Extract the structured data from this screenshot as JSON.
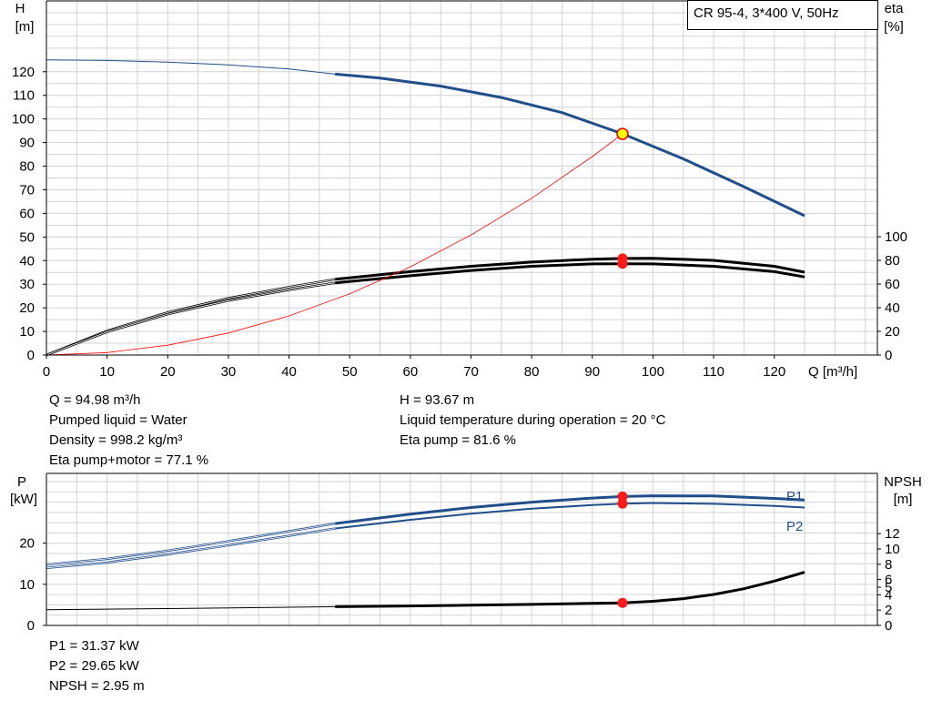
{
  "top_chart": {
    "pump_label": "CR 95-4, 3*400 V, 50Hz",
    "y_left_label": [
      "H",
      "[m]"
    ],
    "y_right_label": [
      "eta",
      "[%]"
    ],
    "x_label": "Q [m³/h]"
  },
  "top_info": {
    "left": [
      "Q = 94.98 m³/h",
      "Pumped liquid = Water",
      "Density = 998.2 kg/m³",
      "Eta pump+motor = 77.1 %"
    ],
    "right": [
      "H = 93.67 m",
      "Liquid temperature during operation = 20 °C",
      "Eta pump = 81.6 %"
    ]
  },
  "bottom_chart": {
    "y_left_label": [
      "P",
      "[kW]"
    ],
    "y_right_label": [
      "NPSH",
      "[m]"
    ],
    "series_labels": [
      "P1",
      "P2"
    ]
  },
  "bottom_info": [
    "P1 = 31.37 kW",
    "P2 = 29.65 kW",
    "NPSH = 2.95 m"
  ],
  "chart_data": [
    {
      "type": "line",
      "x": {
        "label": "Q [m³/h]",
        "range": [
          0,
          137
        ],
        "ticks": [
          0,
          10,
          20,
          30,
          40,
          50,
          60,
          70,
          80,
          90,
          100,
          110,
          120
        ]
      },
      "y_left": {
        "label": "H [m]",
        "range": [
          0,
          150
        ],
        "ticks": [
          0,
          10,
          20,
          30,
          40,
          50,
          60,
          70,
          80,
          90,
          100,
          110,
          120
        ]
      },
      "y_right": {
        "label": "eta [%]",
        "ticks": [
          0,
          20,
          40,
          60,
          80,
          100
        ]
      },
      "grid": true,
      "series": [
        {
          "name": "H",
          "axis": "left",
          "color": "#1f4e8a",
          "points": [
            [
              0,
              125
            ],
            [
              10,
              124.8
            ],
            [
              20,
              124.1
            ],
            [
              30,
              122.9
            ],
            [
              40,
              121.2
            ],
            [
              47.6,
              119
            ],
            [
              55,
              117.3
            ],
            [
              65,
              113.9
            ],
            [
              75,
              109.1
            ],
            [
              85,
              102.7
            ],
            [
              95,
              93.7
            ],
            [
              105,
              83.1
            ],
            [
              115,
              71.3
            ],
            [
              125,
              59
            ]
          ]
        },
        {
          "name": "eta pump",
          "axis": "right",
          "color": "#000000",
          "points": [
            [
              0,
              0
            ],
            [
              10,
              20.5
            ],
            [
              20,
              36
            ],
            [
              30,
              48
            ],
            [
              40,
              57.5
            ],
            [
              47.6,
              64
            ],
            [
              60,
              70.5
            ],
            [
              70,
              75
            ],
            [
              80,
              78.5
            ],
            [
              90,
              81
            ],
            [
              95,
              81.6
            ],
            [
              100,
              81.8
            ],
            [
              110,
              80
            ],
            [
              120,
              75
            ],
            [
              125,
              70
            ]
          ]
        },
        {
          "name": "eta pump+motor",
          "axis": "right",
          "color": "#000000",
          "points": [
            [
              0,
              0
            ],
            [
              10,
              19.5
            ],
            [
              20,
              34.5
            ],
            [
              30,
              46
            ],
            [
              40,
              55
            ],
            [
              47.6,
              61
            ],
            [
              60,
              67
            ],
            [
              70,
              71.5
            ],
            [
              80,
              75
            ],
            [
              90,
              77
            ],
            [
              95,
              77.1
            ],
            [
              100,
              77
            ],
            [
              110,
              75
            ],
            [
              120,
              70.5
            ],
            [
              125,
              66
            ]
          ]
        },
        {
          "name": "system curve",
          "axis": "left",
          "color": "#ff0000",
          "points": [
            [
              0,
              0
            ],
            [
              10,
              1.04
            ],
            [
              20,
              4.15
            ],
            [
              30,
              9.34
            ],
            [
              40,
              16.6
            ],
            [
              50,
              25.94
            ],
            [
              60,
              37.36
            ],
            [
              70,
              50.85
            ],
            [
              80,
              66.42
            ],
            [
              90,
              84.06
            ],
            [
              94.98,
              93.67
            ]
          ]
        }
      ],
      "operating_point": {
        "Q": 94.98,
        "H": 93.67,
        "eta_pump": 81.6,
        "eta_pump_motor": 77.1
      }
    },
    {
      "type": "line",
      "x": {
        "label": "Q [m³/h]",
        "range": [
          0,
          137
        ]
      },
      "y_left": {
        "label": "P [kW]",
        "range": [
          0,
          37
        ],
        "ticks": [
          0,
          10,
          20
        ]
      },
      "y_right": {
        "label": "NPSH [m]",
        "ticks": [
          0,
          2,
          4,
          5,
          6,
          8,
          10,
          12
        ]
      },
      "grid": true,
      "series": [
        {
          "name": "P1",
          "axis": "left",
          "color": "#1f4e8a",
          "points": [
            [
              0,
              14.8
            ],
            [
              10,
              16.2
            ],
            [
              20,
              18.2
            ],
            [
              30,
              20.5
            ],
            [
              40,
              22.9
            ],
            [
              47.6,
              24.8
            ],
            [
              60,
              27.1
            ],
            [
              70,
              28.7
            ],
            [
              80,
              30
            ],
            [
              90,
              31
            ],
            [
              94.98,
              31.37
            ],
            [
              100,
              31.55
            ],
            [
              110,
              31.5
            ],
            [
              120,
              30.9
            ],
            [
              125,
              30.5
            ]
          ]
        },
        {
          "name": "P2",
          "axis": "left",
          "color": "#1f4e8a",
          "points": [
            [
              0,
              14
            ],
            [
              10,
              15.3
            ],
            [
              20,
              17.3
            ],
            [
              30,
              19.5
            ],
            [
              40,
              21.8
            ],
            [
              47.6,
              23.6
            ],
            [
              60,
              25.7
            ],
            [
              70,
              27.2
            ],
            [
              80,
              28.4
            ],
            [
              90,
              29.3
            ],
            [
              94.98,
              29.65
            ],
            [
              100,
              29.8
            ],
            [
              110,
              29.6
            ],
            [
              120,
              29.1
            ],
            [
              125,
              28.7
            ]
          ]
        },
        {
          "name": "NPSH",
          "axis": "right",
          "color": "#000000",
          "points": [
            [
              0,
              2.05
            ],
            [
              20,
              2.2
            ],
            [
              40,
              2.38
            ],
            [
              47.6,
              2.45
            ],
            [
              60,
              2.55
            ],
            [
              70,
              2.65
            ],
            [
              80,
              2.75
            ],
            [
              90,
              2.88
            ],
            [
              94.98,
              2.95
            ],
            [
              100,
              3.15
            ],
            [
              105,
              3.5
            ],
            [
              110,
              4.05
            ],
            [
              115,
              4.8
            ],
            [
              120,
              5.8
            ],
            [
              125,
              6.95
            ]
          ]
        }
      ],
      "operating_point": {
        "Q": 94.98,
        "P1": 31.37,
        "P2": 29.65,
        "NPSH": 2.95
      }
    }
  ]
}
